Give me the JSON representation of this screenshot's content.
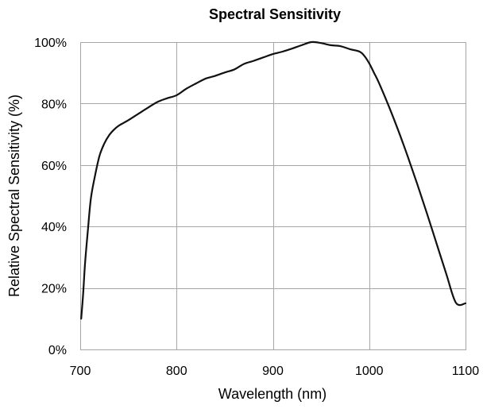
{
  "chart_data": {
    "type": "line",
    "title": "Spectral Sensitivity",
    "xlabel": "Wavelength (nm)",
    "ylabel": "Relative Spectral Sensitivity (%)",
    "xlim": [
      700,
      1100
    ],
    "ylim": [
      0,
      100
    ],
    "x_ticks": [
      700,
      800,
      900,
      1000,
      1100
    ],
    "x_tick_labels": [
      "700",
      "800",
      "900",
      "1000",
      "1100"
    ],
    "y_ticks": [
      0,
      20,
      40,
      60,
      80,
      100
    ],
    "y_tick_labels": [
      "0%",
      "20%",
      "40%",
      "60%",
      "80%",
      "100%"
    ],
    "grid": true,
    "legend": "none",
    "series": [
      {
        "color": "#111111",
        "x": [
          701,
          703,
          705,
          708,
          711,
          715,
          720,
          725,
          730,
          735,
          740,
          745,
          750,
          760,
          770,
          780,
          790,
          800,
          810,
          820,
          830,
          840,
          850,
          860,
          870,
          880,
          890,
          900,
          910,
          920,
          930,
          940,
          950,
          960,
          970,
          980,
          990,
          995,
          1000,
          1005,
          1010,
          1020,
          1030,
          1040,
          1050,
          1060,
          1070,
          1080,
          1090,
          1100
        ],
        "y": [
          10,
          18,
          28,
          39,
          49,
          56,
          63,
          67,
          69.7,
          71.5,
          72.8,
          73.7,
          74.6,
          76.6,
          78.6,
          80.5,
          81.7,
          82.7,
          84.8,
          86.5,
          88.1,
          89.0,
          90.1,
          91.1,
          92.9,
          93.9,
          95.0,
          96.1,
          96.9,
          97.9,
          99.0,
          100.0,
          99.7,
          99.0,
          98.7,
          97.7,
          96.9,
          95.5,
          93.1,
          90.0,
          86.8,
          79.4,
          71.4,
          62.8,
          53.7,
          44.2,
          34.4,
          24.6,
          15.2,
          15.0
        ]
      }
    ]
  }
}
